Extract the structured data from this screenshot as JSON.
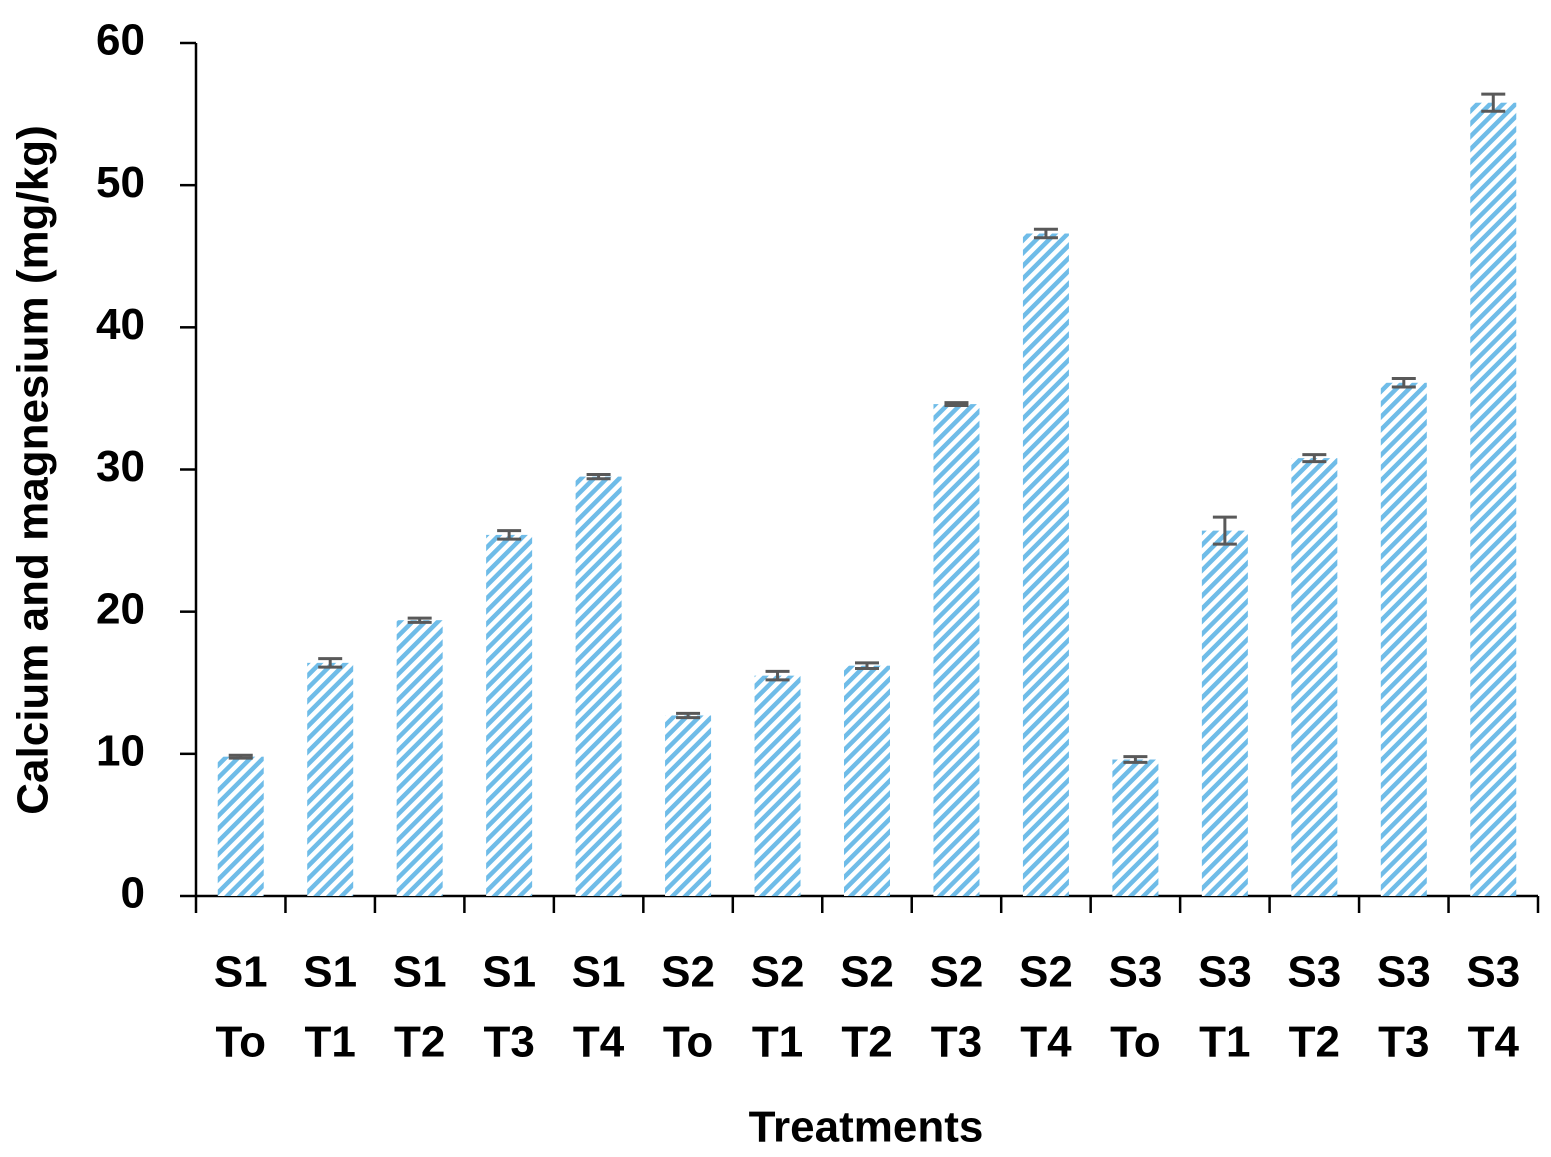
{
  "chart_data": {
    "type": "bar",
    "x_label": "Treatments",
    "y_label": "Calcium and magnesium (mg/kg)",
    "categories": [
      [
        "S1",
        "To"
      ],
      [
        "S1",
        "T1"
      ],
      [
        "S1",
        "T2"
      ],
      [
        "S1",
        "T3"
      ],
      [
        "S1",
        "T4"
      ],
      [
        "S2",
        "To"
      ],
      [
        "S2",
        "T1"
      ],
      [
        "S2",
        "T2"
      ],
      [
        "S2",
        "T3"
      ],
      [
        "S2",
        "T4"
      ],
      [
        "S3",
        "To"
      ],
      [
        "S3",
        "T1"
      ],
      [
        "S3",
        "T2"
      ],
      [
        "S3",
        "T3"
      ],
      [
        "S3",
        "T4"
      ]
    ],
    "values": [
      9.8,
      16.4,
      19.4,
      25.4,
      29.5,
      12.7,
      15.5,
      16.2,
      34.6,
      46.6,
      9.6,
      25.7,
      30.8,
      36.1,
      55.8
    ],
    "errors": [
      0.1,
      0.3,
      0.15,
      0.3,
      0.15,
      0.15,
      0.3,
      0.2,
      0.1,
      0.3,
      0.2,
      0.95,
      0.25,
      0.3,
      0.6
    ],
    "color": "#6fbce8",
    "error_color": "#595959",
    "ylim": [
      0,
      60
    ],
    "yticks": [
      0,
      10,
      20,
      30,
      40,
      50,
      60
    ],
    "grid": false
  }
}
